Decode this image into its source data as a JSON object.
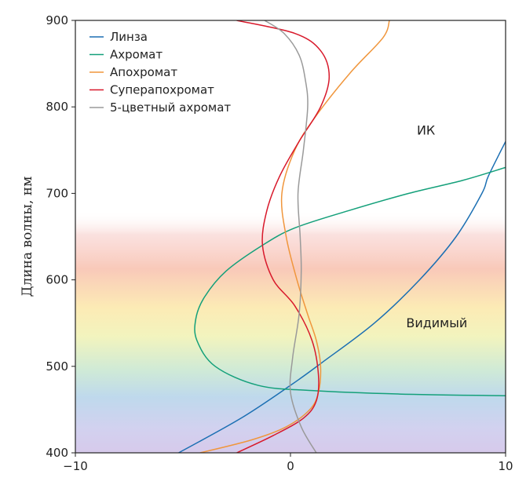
{
  "chart_data": {
    "type": "line",
    "title": "",
    "xlabel": "",
    "ylabel": "Длина волны, нм",
    "xlim": [
      -10,
      10
    ],
    "ylim": [
      400,
      900
    ],
    "xticks": [
      -10,
      0,
      10
    ],
    "xtick_labels": [
      "−10",
      "0",
      "10"
    ],
    "yticks": [
      400,
      500,
      600,
      700,
      800,
      900
    ],
    "yticks_labels": [
      "400",
      "500",
      "600",
      "700",
      "800",
      "900"
    ],
    "grid": false,
    "legend_position": "top-left",
    "regions": [
      {
        "label": "ИК",
        "x": 6.3,
        "y": 768
      },
      {
        "label": "Видимый",
        "x": 6.8,
        "y": 545
      }
    ],
    "visible_band": {
      "from": 400,
      "to": 680
    },
    "series": [
      {
        "name": "Линза",
        "color": "#1b6fb3",
        "points": [
          [
            -5.2,
            400
          ],
          [
            -2.3,
            440
          ],
          [
            0,
            478
          ],
          [
            1.5,
            505
          ],
          [
            3.9,
            550
          ],
          [
            6.0,
            600
          ],
          [
            7.7,
            650
          ],
          [
            8.9,
            700
          ],
          [
            9.2,
            720
          ],
          [
            10.0,
            760
          ]
        ]
      },
      {
        "name": "Ахромат",
        "color": "#14a07a",
        "points": [
          [
            10.0,
            466
          ],
          [
            5.0,
            468
          ],
          [
            1.0,
            472
          ],
          [
            -1.5,
            478
          ],
          [
            -3.5,
            500
          ],
          [
            -4.35,
            530
          ],
          [
            -4.4,
            555
          ],
          [
            -4.0,
            580
          ],
          [
            -3.0,
            610
          ],
          [
            -1.3,
            640
          ],
          [
            0.2,
            660
          ],
          [
            2.7,
            680
          ],
          [
            5.5,
            700
          ],
          [
            8.0,
            715
          ],
          [
            10.0,
            730
          ]
        ]
      },
      {
        "name": "Апохромат",
        "color": "#f0963c",
        "points": [
          [
            -4.2,
            400
          ],
          [
            -1.8,
            415
          ],
          [
            -0.2,
            430
          ],
          [
            0.9,
            450
          ],
          [
            1.3,
            470
          ],
          [
            1.4,
            500
          ],
          [
            1.2,
            530
          ],
          [
            0.8,
            560
          ],
          [
            0.3,
            600
          ],
          [
            -0.2,
            650
          ],
          [
            -0.4,
            700
          ],
          [
            0.2,
            750
          ],
          [
            1.2,
            790
          ],
          [
            2.8,
            840
          ],
          [
            4.3,
            880
          ],
          [
            4.6,
            900
          ]
        ]
      },
      {
        "name": "Суперапохромат",
        "color": "#d8192b",
        "points": [
          [
            -2.5,
            400
          ],
          [
            -0.8,
            420
          ],
          [
            0.6,
            440
          ],
          [
            1.2,
            460
          ],
          [
            1.3,
            490
          ],
          [
            1.0,
            530
          ],
          [
            0.2,
            570
          ],
          [
            -0.8,
            600
          ],
          [
            -1.3,
            640
          ],
          [
            -1.1,
            680
          ],
          [
            -0.5,
            720
          ],
          [
            0.4,
            760
          ],
          [
            1.4,
            800
          ],
          [
            1.8,
            835
          ],
          [
            1.4,
            865
          ],
          [
            0.2,
            885
          ],
          [
            -2.5,
            900
          ]
        ]
      },
      {
        "name": "5-цветный ахромат",
        "color": "#9a9a9a",
        "points": [
          [
            1.2,
            400
          ],
          [
            0.5,
            430
          ],
          [
            0,
            470
          ],
          [
            0.1,
            510
          ],
          [
            0.4,
            560
          ],
          [
            0.5,
            610
          ],
          [
            0.45,
            650
          ],
          [
            0.35,
            700
          ],
          [
            0.6,
            750
          ],
          [
            0.8,
            800
          ],
          [
            0.7,
            830
          ],
          [
            0.4,
            860
          ],
          [
            -0.3,
            885
          ],
          [
            -1.2,
            900
          ]
        ]
      }
    ]
  }
}
